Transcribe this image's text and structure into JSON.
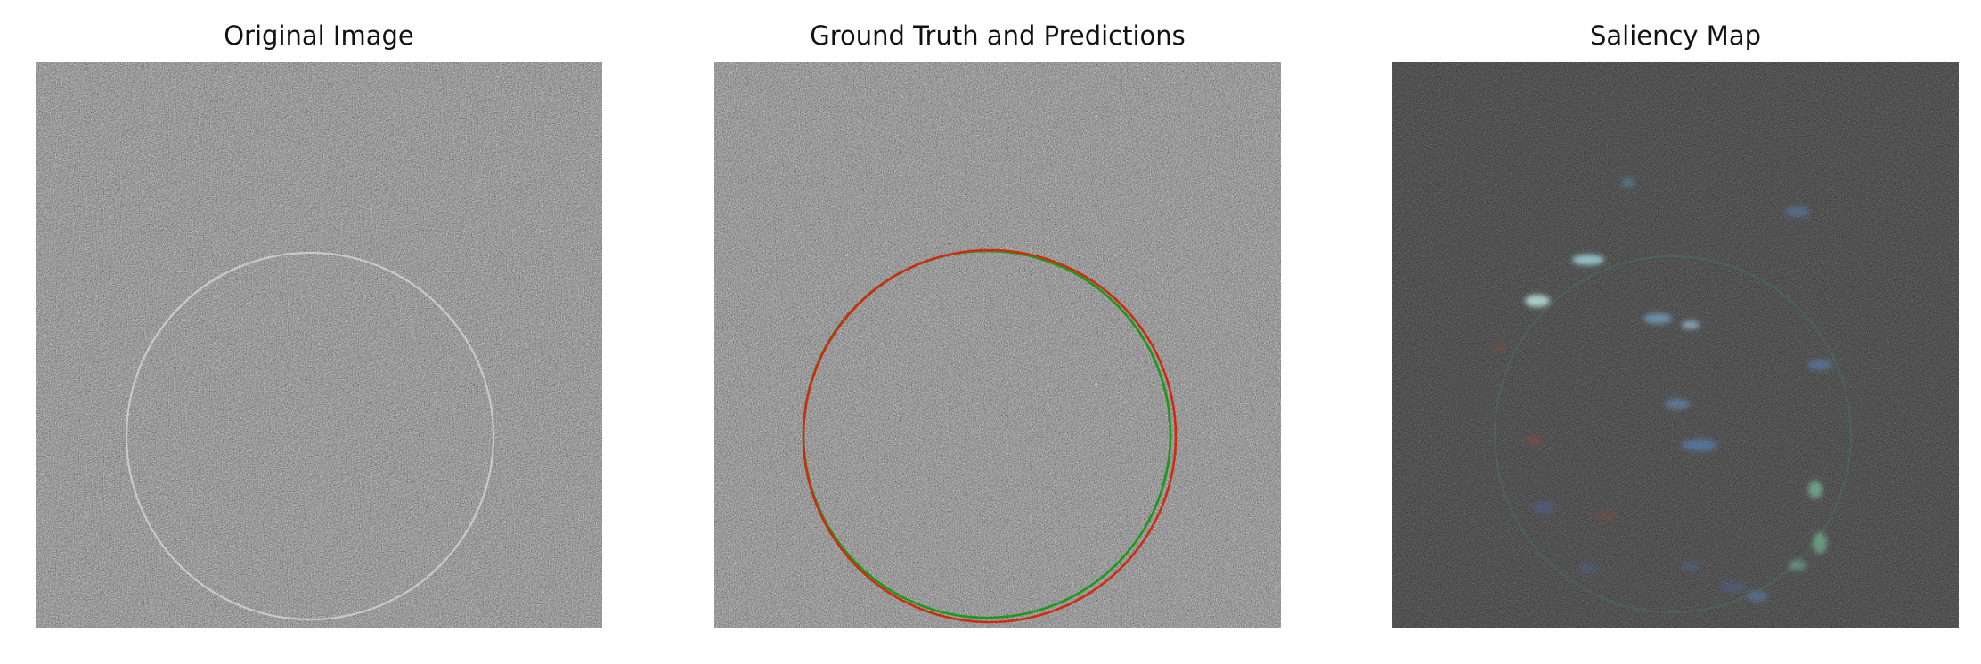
{
  "panels": [
    {
      "title": "Original Image",
      "image": "noise-with-faint-circle"
    },
    {
      "title": "Ground Truth and Predictions",
      "image": "noise-with-overlaid-circles",
      "overlay_colors": {
        "ground_truth": "#1a9a1a",
        "prediction": "#d02a10"
      }
    },
    {
      "title": "Saliency Map",
      "image": "dark-saliency-map"
    }
  ]
}
